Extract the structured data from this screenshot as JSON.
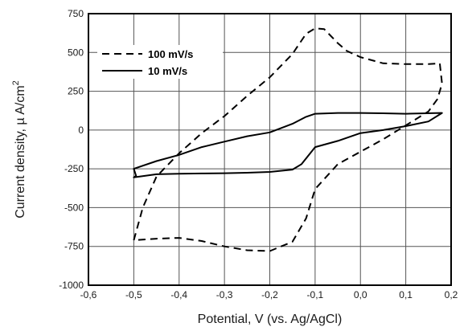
{
  "chart_data": {
    "type": "line",
    "xlabel": "Potential, V (vs. Ag/AgCl)",
    "ylabel": "Current density, µ A/cm",
    "ylabel_superscript": "2",
    "xlim": [
      -0.6,
      0.2
    ],
    "ylim": [
      -1000,
      750
    ],
    "x_ticks": [
      -0.6,
      -0.5,
      -0.4,
      -0.3,
      -0.2,
      -0.1,
      0.0,
      0.1,
      0.2
    ],
    "x_tick_labels": [
      "-0,6",
      "-0,5",
      "-0,4",
      "-0,3",
      "-0,2",
      "-0,1",
      "0,0",
      "0,1",
      "0,2"
    ],
    "y_ticks": [
      750,
      500,
      250,
      0,
      -250,
      -500,
      -750,
      -1000
    ],
    "y_tick_labels": [
      "750",
      "500",
      "250",
      "0",
      "-250",
      "-500",
      "-750",
      "-1000"
    ],
    "grid": true,
    "legend_position": "top-left",
    "series": [
      {
        "name": "100 mV/s",
        "style": "dashed",
        "color": "#000000",
        "x": [
          -0.5,
          -0.48,
          -0.45,
          -0.4,
          -0.35,
          -0.3,
          -0.25,
          -0.2,
          -0.15,
          -0.12,
          -0.1,
          -0.08,
          -0.05,
          -0.03,
          0.0,
          0.05,
          0.1,
          0.15,
          0.175,
          0.18,
          0.17,
          0.15,
          0.1,
          0.05,
          0.0,
          -0.05,
          -0.1,
          -0.12,
          -0.15,
          -0.2,
          -0.25,
          -0.3,
          -0.35,
          -0.4,
          -0.45,
          -0.5
        ],
        "y": [
          -710,
          -500,
          -300,
          -150,
          -20,
          90,
          220,
          340,
          490,
          620,
          655,
          650,
          560,
          510,
          470,
          430,
          425,
          425,
          430,
          300,
          200,
          120,
          30,
          -60,
          -140,
          -220,
          -380,
          -570,
          -720,
          -780,
          -775,
          -750,
          -715,
          -695,
          -700,
          -710
        ]
      },
      {
        "name": "10 mV/s",
        "style": "solid",
        "color": "#000000",
        "x": [
          -0.5,
          -0.45,
          -0.4,
          -0.35,
          -0.3,
          -0.25,
          -0.2,
          -0.15,
          -0.13,
          -0.1,
          -0.05,
          0.0,
          0.05,
          0.1,
          0.15,
          0.18,
          0.175,
          0.1,
          0.05,
          0.0,
          -0.05,
          -0.1,
          -0.12,
          -0.15,
          -0.2,
          -0.25,
          -0.3,
          -0.35,
          -0.4,
          -0.45,
          -0.5,
          -0.495
        ],
        "y": [
          -305,
          -285,
          -282,
          -280,
          -278,
          -275,
          -270,
          -255,
          -220,
          -110,
          -70,
          -20,
          0,
          25,
          55,
          110,
          110,
          105,
          108,
          110,
          110,
          105,
          85,
          40,
          -15,
          -40,
          -75,
          -110,
          -160,
          -200,
          -250,
          -295
        ]
      }
    ]
  }
}
